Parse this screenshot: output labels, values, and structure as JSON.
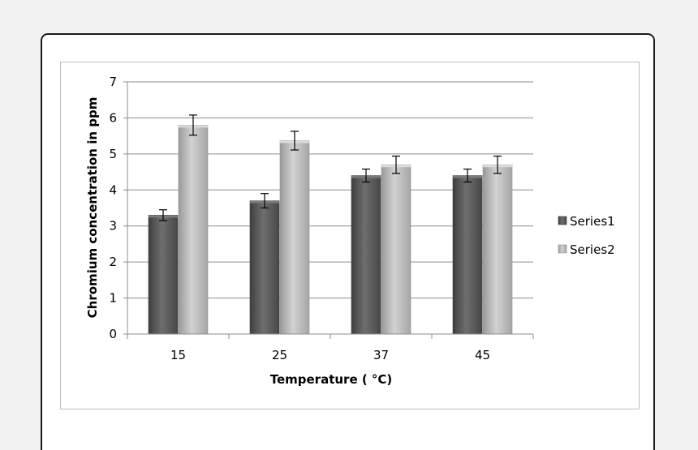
{
  "chart_data": {
    "type": "bar",
    "title": "",
    "xlabel": "Temperature ( °C)",
    "ylabel": "Chromium concentration in ppm",
    "categories": [
      "15",
      "25",
      "37",
      "45"
    ],
    "ylim": [
      0,
      7
    ],
    "yticks": [
      "0",
      "1",
      "2",
      "3",
      "4",
      "5",
      "6",
      "7"
    ],
    "grid": true,
    "legend_position": "right",
    "series": [
      {
        "name": "Series1",
        "values": [
          3.3,
          3.7,
          4.4,
          4.4
        ],
        "errors": [
          0.15,
          0.2,
          0.18,
          0.18
        ],
        "color": "#595959"
      },
      {
        "name": "Series2",
        "values": [
          5.8,
          5.37,
          4.7,
          4.7
        ],
        "errors": [
          0.28,
          0.26,
          0.24,
          0.24
        ],
        "color": "#b3b3b3"
      }
    ]
  }
}
